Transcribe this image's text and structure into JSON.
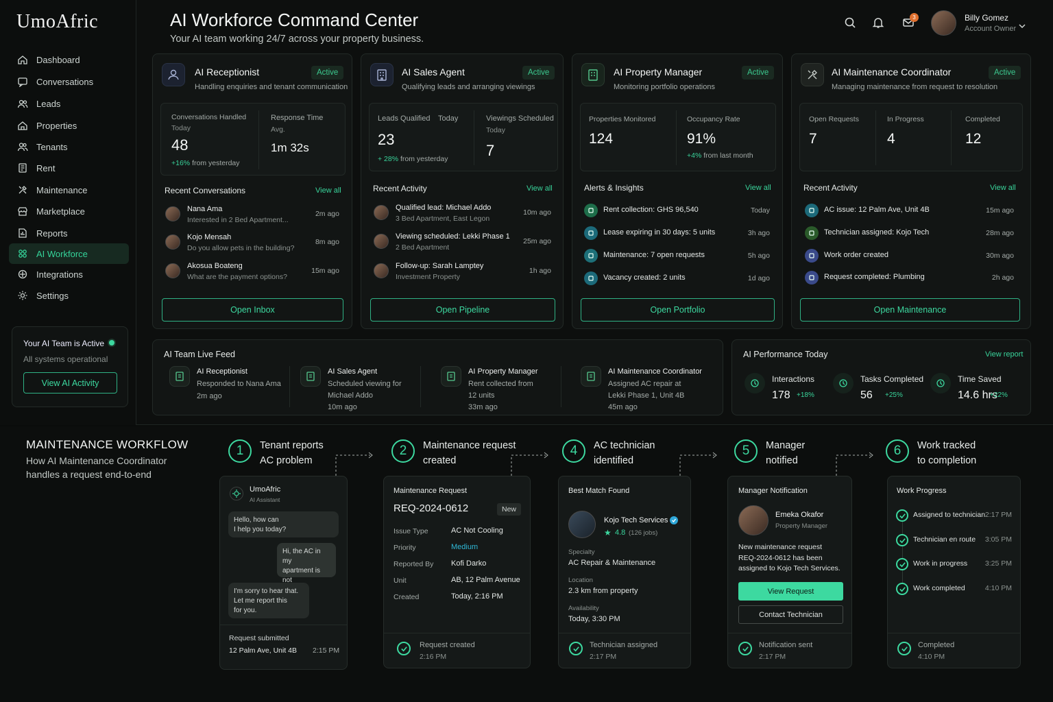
{
  "brand": {
    "logo": "UmoAfric"
  },
  "nav": [
    {
      "label": "Dashboard",
      "icon": "home-icon"
    },
    {
      "label": "Conversations",
      "icon": "chat-icon"
    },
    {
      "label": "Leads",
      "icon": "users-icon"
    },
    {
      "label": "Properties",
      "icon": "house-icon"
    },
    {
      "label": "Tenants",
      "icon": "tenants-icon"
    },
    {
      "label": "Rent",
      "icon": "receipt-icon"
    },
    {
      "label": "Maintenance",
      "icon": "tools-icon"
    },
    {
      "label": "Marketplace",
      "icon": "store-icon"
    },
    {
      "label": "Reports",
      "icon": "reports-icon"
    },
    {
      "label": "AI Workforce",
      "icon": "ai-icon"
    },
    {
      "label": "Integrations",
      "icon": "integrations-icon"
    },
    {
      "label": "Settings",
      "icon": "gear-icon"
    }
  ],
  "team_status": {
    "title": "Your AI Team is Active",
    "subtitle": "All systems operational",
    "button": "View AI Activity"
  },
  "header": {
    "title": "AI Workforce Command Center",
    "subtitle": "Your AI team working 24/7 across your property business.",
    "mail_badge": "3",
    "user_name": "Billy Gomez",
    "user_role": "Account Owner"
  },
  "agents": {
    "receptionist": {
      "name": "AI Receptionist",
      "status": "Active",
      "desc": "Handling enquiries and tenant communication",
      "m1_label": "Conversations Handled",
      "m1_sub": "Today",
      "m1_value": "48",
      "m1_change": "+16%",
      "m1_change_text": "from yesterday",
      "m2_label": "Response Time",
      "m2_sub": "Avg.",
      "m2_value": "1m 32s",
      "section": "Recent Conversations",
      "view_all": "View all",
      "items": [
        {
          "name": "Nana Ama",
          "text": "Interested in 2 Bed Apartment...",
          "time": "2m ago"
        },
        {
          "name": "Kojo Mensah",
          "text": "Do you allow pets in the building?",
          "time": "8m ago"
        },
        {
          "name": "Akosua Boateng",
          "text": "What are the payment options?",
          "time": "15m ago"
        }
      ],
      "button": "Open Inbox"
    },
    "sales": {
      "name": "AI Sales Agent",
      "status": "Active",
      "desc": "Qualifying leads and arranging viewings",
      "m1_label": "Leads Qualified",
      "m1_sub": "Today",
      "m1_value": "23",
      "m1_change": "+ 28%",
      "m1_change_text": "from yesterday",
      "m2_label": "Viewings Scheduled",
      "m2_sub": "Today",
      "m2_value": "7",
      "section": "Recent Activity",
      "view_all": "View all",
      "items": [
        {
          "name": "Qualified lead: Michael Addo",
          "text": "3 Bed Apartment, East Legon",
          "time": "10m ago"
        },
        {
          "name": "Viewing scheduled: Lekki Phase 1",
          "text": "2 Bed Apartment",
          "time": "25m ago"
        },
        {
          "name": "Follow-up: Sarah Lamptey",
          "text": "Investment Property",
          "time": "1h ago"
        }
      ],
      "button": "Open Pipeline"
    },
    "property": {
      "name": "AI Property Manager",
      "status": "Active",
      "desc": "Monitoring portfolio operations",
      "m1_label": "Properties Monitored",
      "m1_value": "124",
      "m2_label": "Occupancy Rate",
      "m2_value": "91%",
      "m2_change": "+4%",
      "m2_change_text": "from last month",
      "section": "Alerts & Insights",
      "view_all": "View all",
      "items": [
        {
          "text": "Rent collection: GHS 96,540",
          "time": "Today"
        },
        {
          "text": "Lease expiring in 30 days: 5 units",
          "time": "3h ago"
        },
        {
          "text": "Maintenance: 7 open requests",
          "time": "5h ago"
        },
        {
          "text": "Vacancy created: 2 units",
          "time": "1d ago"
        }
      ],
      "button": "Open Portfolio"
    },
    "maintenance": {
      "name": "AI Maintenance Coordinator",
      "status": "Active",
      "desc": "Managing maintenance from request to resolution",
      "m1_label": "Open Requests",
      "m1_value": "7",
      "m2_label": "In Progress",
      "m2_value": "4",
      "m3_label": "Completed",
      "m3_value": "12",
      "section": "Recent Activity",
      "view_all": "View all",
      "items": [
        {
          "text": "AC issue: 12 Palm Ave, Unit 4B",
          "time": "15m ago"
        },
        {
          "text": "Technician assigned: Kojo Tech",
          "time": "28m ago"
        },
        {
          "text": "Work order created",
          "time": "30m ago"
        },
        {
          "text": "Request completed: Plumbing",
          "time": "2h ago"
        }
      ],
      "button": "Open Maintenance"
    }
  },
  "feed": {
    "title": "AI Team Live Feed",
    "items": [
      {
        "agent": "AI Receptionist",
        "line1": "Responded to Nana Ama",
        "line2": "",
        "time": "2m ago"
      },
      {
        "agent": "AI Sales Agent",
        "line1": "Scheduled viewing for",
        "line2": "Michael Addo",
        "time": "10m ago"
      },
      {
        "agent": "AI Property Manager",
        "line1": "Rent collected from",
        "line2": "12 units",
        "time": "33m ago"
      },
      {
        "agent": "AI Maintenance Coordinator",
        "line1": "Assigned AC repair at",
        "line2": "Lekki Phase 1, Unit 4B",
        "time": "45m ago"
      }
    ]
  },
  "performance": {
    "title": "AI Performance Today",
    "link": "View report",
    "items": [
      {
        "label": "Interactions",
        "value": "178",
        "change": "+18%"
      },
      {
        "label": "Tasks Completed",
        "value": "56",
        "change": "+25%"
      },
      {
        "label": "Time Saved",
        "value": "14.6 hrs",
        "change": "+22%"
      }
    ]
  },
  "workflow": {
    "title": "MAINTENANCE WORKFLOW",
    "subtitle1": "How AI Maintenance Coordinator",
    "subtitle2": "handles a request end-to-end",
    "steps": [
      {
        "num": "1",
        "l1": "Tenant reports",
        "l2": "AC problem"
      },
      {
        "num": "2",
        "l1": "Maintenance request",
        "l2": "created"
      },
      {
        "num": "4",
        "l1": "AC technician",
        "l2": "identified"
      },
      {
        "num": "5",
        "l1": "Manager",
        "l2": "notified"
      },
      {
        "num": "6",
        "l1": "Work tracked",
        "l2": "to completion"
      }
    ],
    "chat": {
      "brand": "UmoAfric",
      "role": "AI Assistant",
      "m1a": "Hello, how can",
      "m1b": "I help you today?",
      "m2a": "Hi, the AC in my",
      "m2b": "apartment is not",
      "m2c": "cooling.",
      "m3a": "I'm sorry to hear that.",
      "m3b": "Let me report this",
      "m3c": "for you.",
      "foot_label": "Request submitted",
      "foot_addr": "12 Palm Ave, Unit 4B",
      "foot_time": "2:15 PM"
    },
    "request": {
      "title": "Maintenance Request",
      "id": "REQ-2024-0612",
      "badge": "New",
      "rows": [
        {
          "k": "Issue Type",
          "v": "AC Not Cooling"
        },
        {
          "k": "Priority",
          "v": "Medium"
        },
        {
          "k": "Reported By",
          "v": "Kofi Darko"
        },
        {
          "k": "Unit",
          "v": "AB, 12 Palm Avenue"
        },
        {
          "k": "Created",
          "v": "Today, 2:16 PM"
        }
      ],
      "foot_label": "Request created",
      "foot_time": "2:16 PM"
    },
    "match": {
      "title": "Best Match Found",
      "name": "Kojo Tech Services",
      "rating": "4.8",
      "jobs": "(126 jobs)",
      "spec_label": "Specialty",
      "spec": "AC Repair & Maintenance",
      "loc_label": "Location",
      "loc": "2.3 km from property",
      "avail_label": "Availability",
      "avail": "Today, 3:30 PM",
      "foot_label": "Technician assigned",
      "foot_time": "2:17 PM"
    },
    "manager": {
      "title": "Manager Notification",
      "name": "Emeka Okafor",
      "role": "Property Manager",
      "msg1": "New maintenance request",
      "msg2": "REQ-2024-0612 has been",
      "msg3": "assigned to Kojo Tech Services.",
      "btn1": "View Request",
      "btn2": "Contact Technician",
      "foot_label": "Notification sent",
      "foot_time": "2:17 PM"
    },
    "progress": {
      "title": "Work Progress",
      "items": [
        {
          "label": "Assigned to technician",
          "time": "2:17 PM"
        },
        {
          "label": "Technician en route",
          "time": "3:05 PM"
        },
        {
          "label": "Work in progress",
          "time": "3:25 PM"
        },
        {
          "label": "Work completed",
          "time": "4:10 PM"
        }
      ],
      "foot_label": "Completed",
      "foot_time": "4:10 PM"
    }
  },
  "colors": {
    "accent": "#3dd9a0",
    "background": "#0a0c0b",
    "card": "#121514"
  }
}
